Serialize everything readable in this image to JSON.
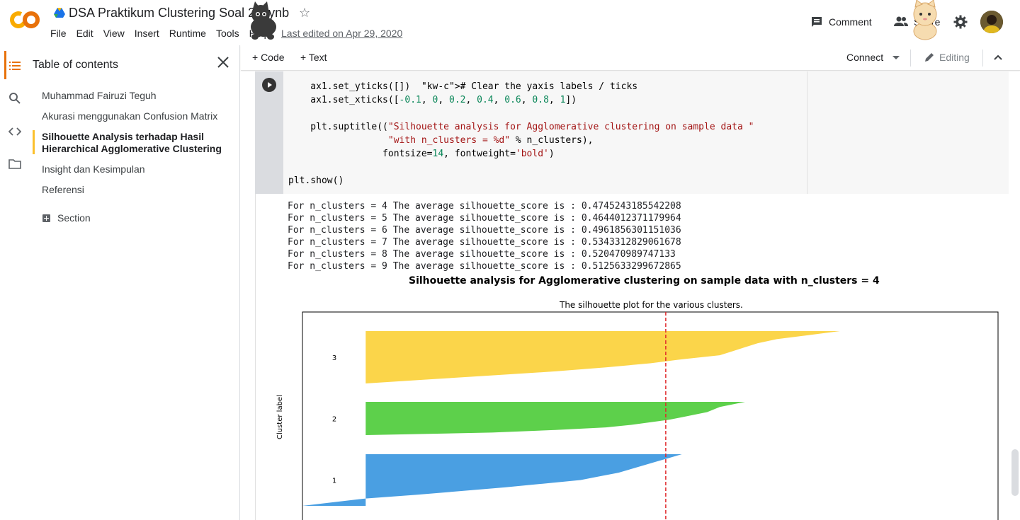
{
  "app": {
    "title": "DSA Praktikum Clustering Soal 2.ipynb",
    "menu": [
      "File",
      "Edit",
      "View",
      "Insert",
      "Runtime",
      "Tools",
      "Help"
    ],
    "last_edited": "Last edited on Apr 29, 2020",
    "comment_label": "Comment",
    "share_label": "Share"
  },
  "toolbar": {
    "code_label": "+ Code",
    "text_label": "+ Text",
    "connect_label": "Connect",
    "editing_label": "Editing"
  },
  "sidebar": {
    "title": "Table of contents",
    "items": [
      {
        "label": "Muhammad Fairuzi Teguh",
        "active": false
      },
      {
        "label": "Akurasi menggunakan Confusion Matrix",
        "active": false
      },
      {
        "label": "Silhouette Analysis terhadap Hasil Hierarchical Agglomerative Clustering",
        "active": true
      },
      {
        "label": "Insight dan Kesimpulan",
        "active": false
      },
      {
        "label": "Referensi",
        "active": false
      }
    ],
    "section_label": "Section"
  },
  "cell": {
    "code_lines": [
      "    ax1.set_yticks([])  # Clear the yaxis labels / ticks",
      "    ax1.set_xticks([-0.1, 0, 0.2, 0.4, 0.6, 0.8, 1])",
      "",
      "    plt.suptitle((\"Silhouette analysis for Agglomerative clustering on sample data \"",
      "                  \"with n_clusters = %d\" % n_clusters),",
      "                 fontsize=14, fontweight='bold')",
      "",
      "plt.show()"
    ],
    "output_lines": [
      "For n_clusters = 4 The average silhouette_score is : 0.4745243185542208",
      "For n_clusters = 5 The average silhouette_score is : 0.4644012371179964",
      "For n_clusters = 6 The average silhouette_score is : 0.4961856301151036",
      "For n_clusters = 7 The average silhouette_score is : 0.5343312829061678",
      "For n_clusters = 8 The average silhouette_score is : 0.520470989747133",
      "For n_clusters = 9 The average silhouette_score is : 0.5125633299672865"
    ]
  },
  "plot": {
    "suptitle": "Silhouette analysis for Agglomerative clustering on sample data with n_clusters = 4",
    "subtitle": "The silhouette plot for the various clusters.",
    "ylabel": "Cluster label",
    "colors": {
      "cluster3": "#fbd54a",
      "cluster2": "#5dd04b",
      "cluster1": "#4a9fe2",
      "average_line": "#e0282a"
    }
  },
  "chart_data": {
    "type": "area",
    "title": "The silhouette plot for the various clusters.",
    "ylabel": "Cluster label",
    "xlim": [
      -0.1,
      1
    ],
    "average_score": 0.4745243185542208,
    "series": [
      {
        "name": "3",
        "values_sorted_desc": [
          0.75,
          0.7,
          0.65,
          0.62,
          0.6,
          0.58,
          0.56,
          0.5,
          0.45,
          0.38,
          0.3,
          0.2,
          0.1,
          0.0
        ]
      },
      {
        "name": "2",
        "values_sorted_desc": [
          0.6,
          0.58,
          0.56,
          0.55,
          0.54,
          0.52,
          0.5,
          0.48,
          0.45,
          0.42,
          0.38,
          0.3,
          0.2,
          0.0
        ]
      },
      {
        "name": "1",
        "values_sorted_desc": [
          0.5,
          0.48,
          0.46,
          0.44,
          0.42,
          0.4,
          0.37,
          0.34,
          0.28,
          0.22,
          0.15,
          0.08,
          0.0,
          -0.05,
          -0.1
        ]
      }
    ]
  }
}
